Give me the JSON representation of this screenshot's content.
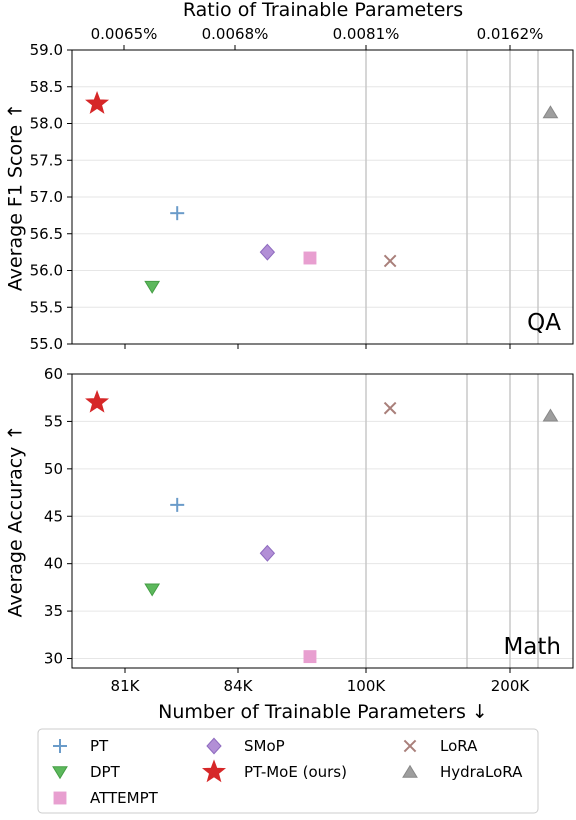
{
  "top_axis_title": "Ratio of Trainable Parameters",
  "top_ticks": [
    "0.0065%",
    "0.0068%",
    "0.0081%",
    "0.0162%"
  ],
  "x_axis_title": "Number of Trainable Parameters ↓",
  "x_ticks": [
    "81K",
    "84K",
    "100K",
    "200K"
  ],
  "legend": [
    {
      "key": "pt",
      "label": "PT",
      "marker": "plus",
      "color": "#6a9bc9"
    },
    {
      "key": "dpt",
      "label": "DPT",
      "marker": "triangle-down",
      "color": "#5cb85c"
    },
    {
      "key": "attempt",
      "label": "ATTEMPT",
      "marker": "square",
      "color": "#e89fd0"
    },
    {
      "key": "smop",
      "label": "SMoP",
      "marker": "diamond",
      "color": "#b28fd6"
    },
    {
      "key": "ptmoe",
      "label": "PT-MoE (ours)",
      "marker": "star",
      "color": "#d62728"
    },
    {
      "key": "lora",
      "label": "LoRA",
      "marker": "x",
      "color": "#a97f7a"
    },
    {
      "key": "hydralora",
      "label": "HydraLoRA",
      "marker": "triangle-up",
      "color": "#9e9e9e"
    }
  ],
  "chart_data": [
    {
      "type": "scatter",
      "panel_label": "QA",
      "ylabel": "Average F1 Score ↑",
      "ylim": [
        55.0,
        59.0
      ],
      "y_ticks": [
        "55.0",
        "55.5",
        "56.0",
        "56.5",
        "57.0",
        "57.5",
        "58.0",
        "58.5",
        "59.0"
      ],
      "x_scale": "categorical-warped",
      "points": [
        {
          "series": "PT-MoE (ours)",
          "key": "ptmoe",
          "x_pos": 0.05,
          "y": 58.27
        },
        {
          "series": "DPT",
          "key": "dpt",
          "x_pos": 0.16,
          "y": 55.78
        },
        {
          "series": "PT",
          "key": "pt",
          "x_pos": 0.21,
          "y": 56.78
        },
        {
          "series": "SMoP",
          "key": "smop",
          "x_pos": 0.39,
          "y": 56.25
        },
        {
          "series": "ATTEMPT",
          "key": "attempt",
          "x_pos": 0.475,
          "y": 56.17
        },
        {
          "series": "LoRA",
          "key": "lora",
          "x_pos": 0.635,
          "y": 56.13
        },
        {
          "series": "HydraLoRA",
          "key": "hydralora",
          "x_pos": 0.955,
          "y": 58.15
        }
      ]
    },
    {
      "type": "scatter",
      "panel_label": "Math",
      "ylabel": "Average Accuracy ↑",
      "ylim": [
        29.0,
        60.0
      ],
      "y_ticks": [
        "30",
        "35",
        "40",
        "45",
        "50",
        "55",
        "60"
      ],
      "x_scale": "categorical-warped",
      "points": [
        {
          "series": "PT-MoE (ours)",
          "key": "ptmoe",
          "x_pos": 0.05,
          "y": 57.0
        },
        {
          "series": "DPT",
          "key": "dpt",
          "x_pos": 0.16,
          "y": 37.3
        },
        {
          "series": "PT",
          "key": "pt",
          "x_pos": 0.21,
          "y": 46.2
        },
        {
          "series": "SMoP",
          "key": "smop",
          "x_pos": 0.39,
          "y": 41.1
        },
        {
          "series": "ATTEMPT",
          "key": "attempt",
          "x_pos": 0.475,
          "y": 30.2
        },
        {
          "series": "LoRA",
          "key": "lora",
          "x_pos": 0.635,
          "y": 56.4
        },
        {
          "series": "HydraLoRA",
          "key": "hydralora",
          "x_pos": 0.955,
          "y": 55.6
        }
      ]
    }
  ]
}
